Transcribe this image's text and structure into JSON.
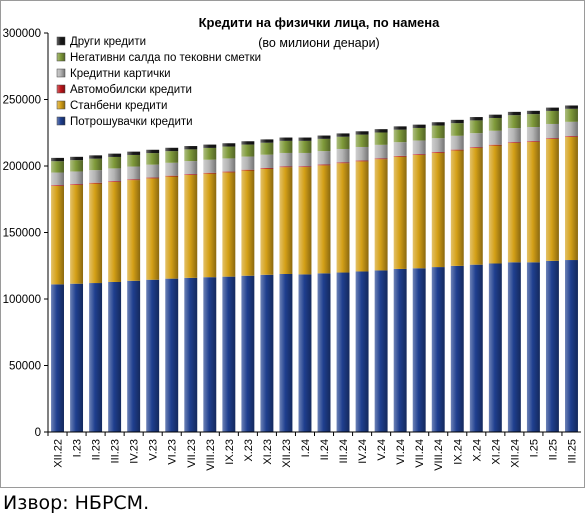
{
  "chart_data": {
    "type": "bar",
    "stacked": true,
    "title": "Кредити на физички лица, по намена",
    "subtitle": "(во милиони денари)",
    "xlabel": "",
    "ylabel": "",
    "ylim": [
      0,
      300000
    ],
    "yticks": [
      0,
      50000,
      100000,
      150000,
      200000,
      250000,
      300000
    ],
    "ytick_labels": [
      "0",
      "50000",
      "100000",
      "150000",
      "200000",
      "250000",
      "300000"
    ],
    "grid": false,
    "legend_position": "top-left",
    "categories": [
      "XII.22",
      "I.23",
      "II.23",
      "III.23",
      "IV.23",
      "V.23",
      "VI.23",
      "VII.23",
      "VIII.23",
      "IX.23",
      "X.23",
      "XI.23",
      "XII.23",
      "I.24",
      "II.24",
      "III.24",
      "IV.24",
      "V.24",
      "VI.24",
      "VII.24",
      "VIII.24",
      "IX.24",
      "X.24",
      "XI.24",
      "XII.24",
      "I.25",
      "II.25",
      "III.25"
    ],
    "series": [
      {
        "name": "Потрошувачки кредити",
        "color": "#1f3f8f",
        "values": [
          111000,
          111500,
          112000,
          112800,
          113700,
          114500,
          115300,
          115900,
          116400,
          116800,
          117500,
          118200,
          118800,
          118500,
          119300,
          119900,
          120700,
          121500,
          122600,
          123100,
          124000,
          124900,
          125800,
          126700,
          127600,
          127600,
          128700,
          129300
        ]
      },
      {
        "name": "Станбени кредити",
        "color": "#d4a017",
        "values": [
          74000,
          74300,
          74800,
          75200,
          75700,
          76200,
          76800,
          77400,
          77900,
          78400,
          79100,
          79700,
          80300,
          80700,
          81200,
          82200,
          82800,
          83600,
          84400,
          85200,
          85900,
          86800,
          87800,
          88700,
          89700,
          90500,
          91600,
          92600
        ]
      },
      {
        "name": "Автомобилски кредити",
        "color": "#c0161b",
        "values": [
          600,
          600,
          600,
          600,
          600,
          600,
          600,
          600,
          600,
          600,
          600,
          600,
          600,
          600,
          600,
          600,
          600,
          600,
          600,
          600,
          600,
          600,
          600,
          600,
          600,
          600,
          600,
          600
        ]
      },
      {
        "name": "Кредитни картички",
        "color": "#b4b4b4",
        "values": [
          9500,
          9500,
          9500,
          9600,
          9600,
          9700,
          9700,
          9800,
          9800,
          9900,
          9900,
          10000,
          10100,
          10000,
          10100,
          10100,
          10200,
          10200,
          10300,
          10300,
          10400,
          10400,
          10500,
          10500,
          10600,
          10600,
          10700,
          10700
        ]
      },
      {
        "name": "Негативни салда по тековни сметки",
        "color": "#7f9a3a",
        "values": [
          8500,
          8500,
          8600,
          8600,
          8700,
          8700,
          8800,
          8800,
          8900,
          8900,
          9000,
          9000,
          9100,
          9100,
          9200,
          9200,
          9300,
          9300,
          9400,
          9400,
          9500,
          9500,
          9600,
          9600,
          9700,
          9700,
          9800,
          9800
        ]
      },
      {
        "name": "Други кредити",
        "color": "#1a1a1a",
        "values": [
          2500,
          2500,
          2500,
          2500,
          2500,
          2500,
          2500,
          2500,
          2500,
          2500,
          2500,
          2500,
          2500,
          2500,
          2500,
          2500,
          2500,
          2500,
          2500,
          2500,
          2500,
          2500,
          2500,
          2500,
          2500,
          2500,
          2500,
          2500
        ]
      }
    ]
  },
  "source": "Извор: НБРСМ."
}
